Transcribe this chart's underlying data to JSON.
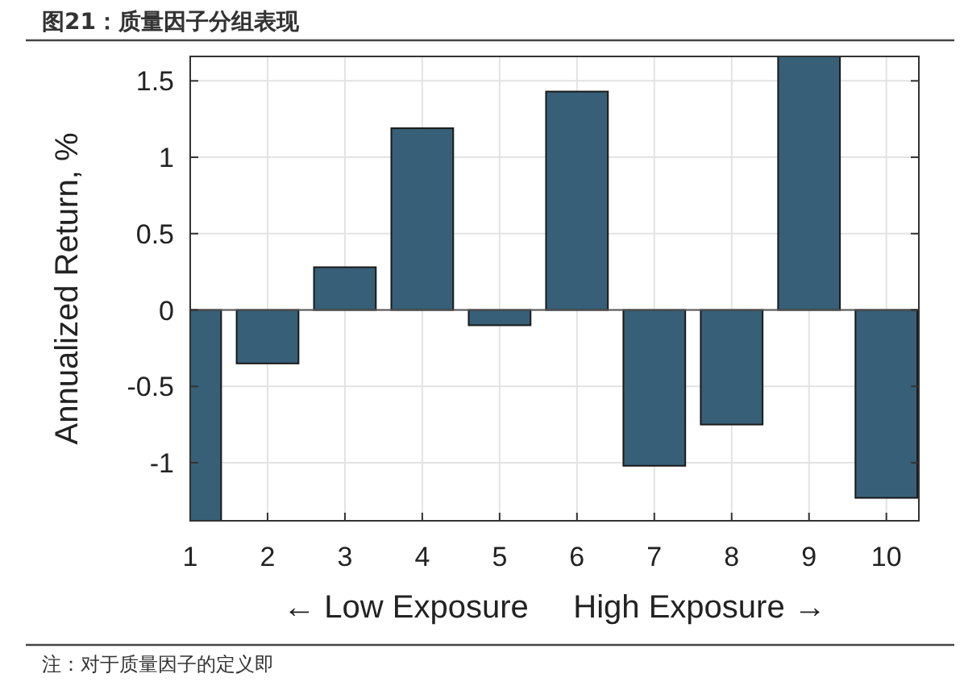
{
  "chart_data": {
    "type": "bar",
    "title": "图21：质量因子分组表现",
    "categories": [
      "1",
      "2",
      "3",
      "4",
      "5",
      "6",
      "7",
      "8",
      "9",
      "10"
    ],
    "values": [
      -1.38,
      -0.35,
      0.28,
      1.19,
      -0.1,
      1.43,
      -1.02,
      -0.75,
      1.66,
      -1.23
    ],
    "color": "#375f78",
    "xlabel": "← Low Exposure     High Exposure →",
    "ylabel": "Annualized Return, %",
    "ylim": [
      -1.38,
      1.66
    ],
    "yticks": [
      -1,
      -0.5,
      0,
      0.5,
      1,
      1.5
    ],
    "grid": true,
    "annotations": [
      "注：对于质量因子的定义即"
    ]
  }
}
